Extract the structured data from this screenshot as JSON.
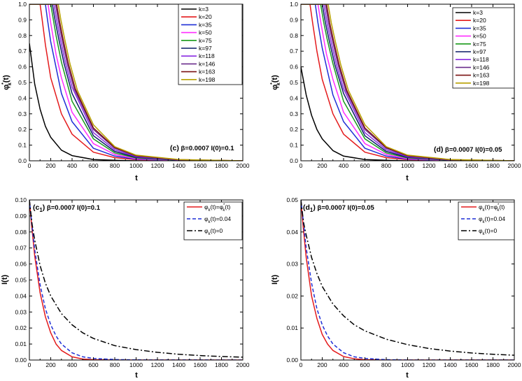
{
  "chart_data": [
    {
      "id": "c",
      "type": "line",
      "panel_label": "(c)",
      "annotation_params": "β=0.0007 I(0)=0.1",
      "xlabel": "t",
      "ylabel_main": "φ",
      "ylabel_sub": "k",
      "ylabel_sup": "*",
      "ylabel_tail": "(t)",
      "xlim": [
        0,
        2000
      ],
      "ylim": [
        0,
        1.0
      ],
      "xticks": [
        0,
        200,
        400,
        600,
        800,
        1000,
        1200,
        1400,
        1600,
        1800,
        2000
      ],
      "yticks": [
        0.0,
        0.1,
        0.2,
        0.3,
        0.4,
        0.5,
        0.6,
        0.7,
        0.8,
        0.9,
        1.0
      ],
      "ytick_decimals": 1,
      "legend_position": "top-right",
      "series": [
        {
          "name": "k=3",
          "color": "#000000",
          "x": [
            0,
            50,
            100,
            150,
            200,
            300,
            400,
            600,
            800,
            1000,
            1400,
            2000
          ],
          "values": [
            0.75,
            0.49,
            0.33,
            0.22,
            0.15,
            0.068,
            0.033,
            0.008,
            0.003,
            0.0,
            0.0,
            0.0
          ]
        },
        {
          "name": "k=20",
          "color": "#e41a1c",
          "x": [
            0,
            100,
            120,
            150,
            200,
            300,
            400,
            600,
            800,
            1000,
            1400,
            2000
          ],
          "values": [
            1.0,
            1.0,
            0.9,
            0.74,
            0.53,
            0.3,
            0.17,
            0.055,
            0.02,
            0.007,
            0.001,
            0.0
          ]
        },
        {
          "name": "k=35",
          "color": "#1f2fd6",
          "x": [
            0,
            150,
            170,
            200,
            300,
            400,
            600,
            800,
            1000,
            1400,
            2000
          ],
          "values": [
            1.0,
            1.0,
            0.9,
            0.76,
            0.43,
            0.25,
            0.08,
            0.03,
            0.01,
            0.001,
            0.0
          ]
        },
        {
          "name": "k=50",
          "color": "#ff2dff",
          "x": [
            0,
            175,
            200,
            250,
            300,
            400,
            600,
            800,
            1000,
            1400,
            2000
          ],
          "values": [
            1.0,
            1.0,
            0.88,
            0.68,
            0.53,
            0.31,
            0.11,
            0.04,
            0.013,
            0.002,
            0.0
          ]
        },
        {
          "name": "k=75",
          "color": "#1a9a1a",
          "x": [
            0,
            200,
            225,
            250,
            300,
            400,
            600,
            800,
            1000,
            1400,
            2000
          ],
          "values": [
            1.0,
            1.0,
            0.9,
            0.8,
            0.63,
            0.38,
            0.14,
            0.05,
            0.018,
            0.003,
            0.0
          ]
        },
        {
          "name": "k=97",
          "color": "#0a1a66",
          "x": [
            0,
            215,
            240,
            275,
            325,
            400,
            600,
            800,
            1000,
            1400,
            2000
          ],
          "values": [
            1.0,
            1.0,
            0.9,
            0.78,
            0.62,
            0.43,
            0.16,
            0.06,
            0.022,
            0.004,
            0.0
          ]
        },
        {
          "name": "k=118",
          "color": "#8a2be2",
          "x": [
            0,
            230,
            255,
            290,
            340,
            400,
            600,
            800,
            1000,
            1400,
            2000
          ],
          "values": [
            1.0,
            1.0,
            0.9,
            0.78,
            0.62,
            0.47,
            0.18,
            0.07,
            0.026,
            0.005,
            0.0
          ]
        },
        {
          "name": "k=146",
          "color": "#6a2c8c",
          "x": [
            0,
            245,
            270,
            305,
            355,
            420,
            600,
            800,
            1000,
            1400,
            2000
          ],
          "values": [
            1.0,
            1.0,
            0.9,
            0.78,
            0.62,
            0.46,
            0.2,
            0.08,
            0.03,
            0.006,
            0.0
          ]
        },
        {
          "name": "k=163",
          "color": "#7a1212",
          "x": [
            0,
            255,
            280,
            315,
            365,
            430,
            600,
            800,
            1000,
            1400,
            2000
          ],
          "values": [
            1.0,
            1.0,
            0.9,
            0.78,
            0.62,
            0.46,
            0.21,
            0.085,
            0.033,
            0.007,
            0.0
          ]
        },
        {
          "name": "k=198",
          "color": "#b8a000",
          "x": [
            0,
            270,
            295,
            330,
            380,
            450,
            600,
            800,
            1000,
            1400,
            2000
          ],
          "values": [
            1.0,
            1.0,
            0.9,
            0.78,
            0.62,
            0.45,
            0.23,
            0.09,
            0.036,
            0.008,
            0.0
          ]
        }
      ]
    },
    {
      "id": "d",
      "type": "line",
      "panel_label": "(d)",
      "annotation_params": "β=0.0007 I(0)=0.05",
      "xlabel": "t",
      "ylabel_main": "φ",
      "ylabel_sub": "k",
      "ylabel_sup": "*",
      "ylabel_tail": "(t)",
      "xlim": [
        0,
        2000
      ],
      "ylim": [
        0,
        1.0
      ],
      "xticks": [
        0,
        200,
        400,
        600,
        800,
        1000,
        1200,
        1400,
        1600,
        1800,
        2000
      ],
      "yticks": [
        0.0,
        0.1,
        0.2,
        0.3,
        0.4,
        0.5,
        0.6,
        0.7,
        0.8,
        0.9,
        1.0
      ],
      "ytick_decimals": 1,
      "legend_position": "top-right",
      "series": [
        {
          "name": "k=3",
          "color": "#000000",
          "x": [
            0,
            50,
            100,
            150,
            200,
            300,
            400,
            600,
            800,
            1000,
            1400,
            2000
          ],
          "values": [
            0.6,
            0.42,
            0.29,
            0.2,
            0.14,
            0.065,
            0.03,
            0.008,
            0.003,
            0.0,
            0.0,
            0.0
          ]
        },
        {
          "name": "k=20",
          "color": "#e41a1c",
          "x": [
            0,
            85,
            110,
            150,
            200,
            300,
            400,
            600,
            800,
            1000,
            1400,
            2000
          ],
          "values": [
            1.0,
            1.0,
            0.88,
            0.7,
            0.52,
            0.3,
            0.17,
            0.055,
            0.02,
            0.007,
            0.001,
            0.0
          ]
        },
        {
          "name": "k=35",
          "color": "#1f2fd6",
          "x": [
            0,
            135,
            160,
            200,
            300,
            400,
            600,
            800,
            1000,
            1400,
            2000
          ],
          "values": [
            1.0,
            1.0,
            0.88,
            0.72,
            0.42,
            0.25,
            0.08,
            0.03,
            0.01,
            0.001,
            0.0
          ]
        },
        {
          "name": "k=50",
          "color": "#ff2dff",
          "x": [
            0,
            160,
            190,
            240,
            300,
            400,
            600,
            800,
            1000,
            1400,
            2000
          ],
          "values": [
            1.0,
            1.0,
            0.87,
            0.68,
            0.52,
            0.31,
            0.11,
            0.04,
            0.013,
            0.002,
            0.0
          ]
        },
        {
          "name": "k=75",
          "color": "#1a9a1a",
          "x": [
            0,
            185,
            215,
            245,
            300,
            400,
            600,
            800,
            1000,
            1400,
            2000
          ],
          "values": [
            1.0,
            1.0,
            0.88,
            0.78,
            0.62,
            0.38,
            0.14,
            0.05,
            0.018,
            0.003,
            0.0
          ]
        },
        {
          "name": "k=97",
          "color": "#0a1a66",
          "x": [
            0,
            200,
            230,
            265,
            320,
            400,
            600,
            800,
            1000,
            1400,
            2000
          ],
          "values": [
            1.0,
            1.0,
            0.88,
            0.77,
            0.61,
            0.43,
            0.16,
            0.06,
            0.022,
            0.004,
            0.0
          ]
        },
        {
          "name": "k=118",
          "color": "#8a2be2",
          "x": [
            0,
            215,
            245,
            280,
            335,
            400,
            600,
            800,
            1000,
            1400,
            2000
          ],
          "values": [
            1.0,
            1.0,
            0.88,
            0.77,
            0.61,
            0.46,
            0.18,
            0.07,
            0.026,
            0.005,
            0.0
          ]
        },
        {
          "name": "k=146",
          "color": "#6a2c8c",
          "x": [
            0,
            230,
            260,
            295,
            350,
            420,
            600,
            800,
            1000,
            1400,
            2000
          ],
          "values": [
            1.0,
            1.0,
            0.88,
            0.77,
            0.61,
            0.45,
            0.2,
            0.08,
            0.03,
            0.006,
            0.0
          ]
        },
        {
          "name": "k=163",
          "color": "#7a1212",
          "x": [
            0,
            240,
            270,
            305,
            360,
            430,
            600,
            800,
            1000,
            1400,
            2000
          ],
          "values": [
            1.0,
            1.0,
            0.88,
            0.77,
            0.61,
            0.45,
            0.21,
            0.085,
            0.033,
            0.007,
            0.0
          ]
        },
        {
          "name": "k=198",
          "color": "#b8a000",
          "x": [
            0,
            255,
            285,
            320,
            375,
            445,
            600,
            800,
            1000,
            1400,
            2000
          ],
          "values": [
            1.0,
            1.0,
            0.88,
            0.77,
            0.61,
            0.45,
            0.23,
            0.09,
            0.036,
            0.008,
            0.0
          ]
        }
      ]
    },
    {
      "id": "c1",
      "type": "line",
      "panel_label": "(c",
      "panel_label_sub": "1",
      "panel_label_close": ")",
      "annotation_params": "β=0.0007   I(0)=0.1",
      "xlabel": "t",
      "ylabel_text": "I(t)",
      "xlim": [
        0,
        2000
      ],
      "ylim": [
        0,
        0.1
      ],
      "xticks": [
        0,
        200,
        400,
        600,
        800,
        1000,
        1200,
        1400,
        1600,
        1800,
        2000
      ],
      "yticks": [
        0.0,
        0.01,
        0.02,
        0.03,
        0.04,
        0.05,
        0.06,
        0.07,
        0.08,
        0.09,
        0.1
      ],
      "ytick_decimals": 2,
      "legend_position": "top-right",
      "series": [
        {
          "name_main": "φ",
          "name_sub": "k",
          "name_tail": "(t)=φ",
          "name_sup": "*",
          "name_sub2": "k",
          "name_tail2": "(t)",
          "color": "#e41a1c",
          "dash": "",
          "x": [
            0,
            20,
            50,
            100,
            150,
            200,
            250,
            300,
            400,
            500,
            600,
            800,
            1000,
            2000
          ],
          "values": [
            0.1,
            0.085,
            0.065,
            0.042,
            0.027,
            0.017,
            0.01,
            0.006,
            0.002,
            0.0006,
            0.0002,
            0.0,
            0.0,
            0.0
          ]
        },
        {
          "name_main": "φ",
          "name_sub": "k",
          "name_tail": "(t)=0.04",
          "color": "#1f2fd6",
          "dash": "5,3",
          "x": [
            0,
            20,
            50,
            100,
            150,
            200,
            250,
            300,
            400,
            500,
            600,
            800,
            1000,
            2000
          ],
          "values": [
            0.1,
            0.087,
            0.069,
            0.047,
            0.032,
            0.022,
            0.015,
            0.01,
            0.0045,
            0.002,
            0.001,
            0.0003,
            0.0001,
            0.0
          ]
        },
        {
          "name_main": "φ",
          "name_sub": "k",
          "name_tail": "(t)=0",
          "color": "#000000",
          "dash": "8,3,2,3",
          "x": [
            0,
            25,
            50,
            100,
            150,
            200,
            300,
            400,
            500,
            600,
            800,
            1000,
            1200,
            1400,
            1600,
            1800,
            2000
          ],
          "values": [
            0.1,
            0.085,
            0.075,
            0.059,
            0.048,
            0.04,
            0.029,
            0.022,
            0.017,
            0.0135,
            0.009,
            0.0065,
            0.0048,
            0.0036,
            0.0028,
            0.0022,
            0.0018
          ]
        }
      ]
    },
    {
      "id": "d1",
      "type": "line",
      "panel_label": "(d",
      "panel_label_sub": "1",
      "panel_label_close": ")",
      "annotation_params": "β=0.0007   I(0)=0.05",
      "xlabel": "t",
      "ylabel_text": "I(t)",
      "xlim": [
        0,
        2000
      ],
      "ylim": [
        0,
        0.05
      ],
      "xticks": [
        0,
        200,
        400,
        600,
        800,
        1000,
        1200,
        1400,
        1600,
        1800,
        2000
      ],
      "yticks": [
        0.0,
        0.01,
        0.02,
        0.03,
        0.04,
        0.05
      ],
      "ytick_decimals": 2,
      "legend_position": "top-right",
      "series": [
        {
          "name_main": "φ",
          "name_sub": "k",
          "name_tail": "(t)=φ",
          "name_sup": "*",
          "name_sub2": "k",
          "name_tail2": "(t)",
          "color": "#e41a1c",
          "dash": "",
          "x": [
            0,
            20,
            50,
            100,
            150,
            200,
            250,
            300,
            400,
            500,
            600,
            800,
            1000,
            2000
          ],
          "values": [
            0.05,
            0.042,
            0.032,
            0.02,
            0.013,
            0.008,
            0.005,
            0.003,
            0.0011,
            0.0004,
            0.0001,
            0.0,
            0.0,
            0.0
          ]
        },
        {
          "name_main": "φ",
          "name_sub": "k",
          "name_tail": "(t)=0.04",
          "color": "#1f2fd6",
          "dash": "5,3",
          "x": [
            0,
            20,
            50,
            100,
            150,
            200,
            250,
            300,
            400,
            500,
            600,
            800,
            1000,
            2000
          ],
          "values": [
            0.05,
            0.044,
            0.035,
            0.024,
            0.016,
            0.011,
            0.0075,
            0.005,
            0.0023,
            0.001,
            0.0005,
            0.0001,
            0.0,
            0.0
          ]
        },
        {
          "name_main": "φ",
          "name_sub": "k",
          "name_tail": "(t)=0",
          "color": "#000000",
          "dash": "8,3,2,3",
          "x": [
            0,
            25,
            50,
            100,
            150,
            200,
            300,
            400,
            500,
            600,
            800,
            1000,
            1200,
            1400,
            1600,
            1800,
            2000
          ],
          "values": [
            0.05,
            0.043,
            0.039,
            0.032,
            0.027,
            0.023,
            0.0175,
            0.0138,
            0.011,
            0.0091,
            0.0065,
            0.0048,
            0.0036,
            0.0028,
            0.0022,
            0.0018,
            0.0015
          ]
        }
      ]
    }
  ]
}
